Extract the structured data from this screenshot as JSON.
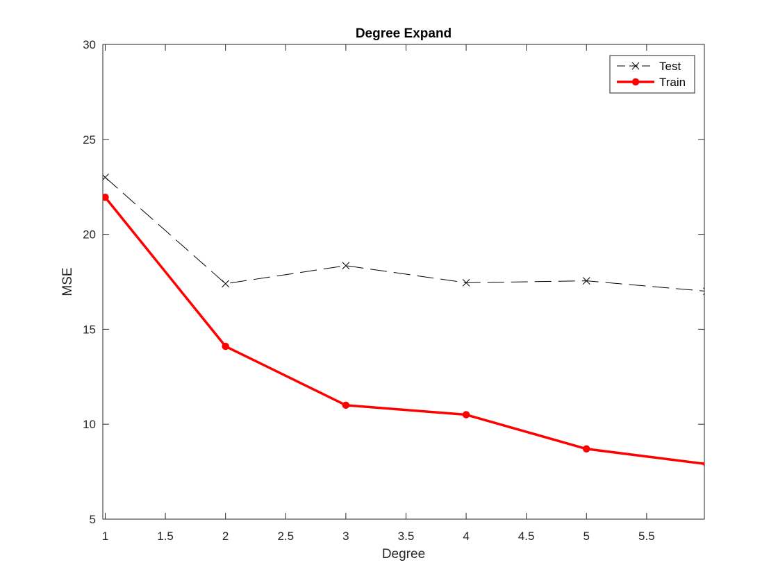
{
  "chart_data": {
    "type": "line",
    "title": "Degree Expand",
    "xlabel": "Degree",
    "ylabel": "MSE",
    "xlim": [
      0.98,
      5.98
    ],
    "ylim": [
      5,
      30
    ],
    "xticks": [
      1,
      1.5,
      2,
      2.5,
      3,
      3.5,
      4,
      4.5,
      5,
      5.5
    ],
    "xtick_labels": [
      "1",
      "1.5",
      "2",
      "2.5",
      "3",
      "3.5",
      "4",
      "4.5",
      "5",
      "5.5"
    ],
    "yticks": [
      5,
      10,
      15,
      20,
      25,
      30
    ],
    "ytick_labels": [
      "5",
      "10",
      "15",
      "20",
      "25",
      "30"
    ],
    "grid": false,
    "legend": "top-right",
    "series": [
      {
        "name": "Test",
        "color": "#000000",
        "line_style": "dashed",
        "marker": "x",
        "x": [
          1,
          2,
          3,
          4,
          5,
          6
        ],
        "y": [
          23.0,
          17.4,
          18.35,
          17.45,
          17.55,
          17.0
        ]
      },
      {
        "name": "Train",
        "color": "#ff0000",
        "line_style": "solid",
        "marker": "filled-circle",
        "x": [
          1,
          2,
          3,
          4,
          5,
          6
        ],
        "y": [
          21.95,
          14.1,
          11.0,
          10.5,
          8.7,
          7.9
        ]
      }
    ]
  }
}
